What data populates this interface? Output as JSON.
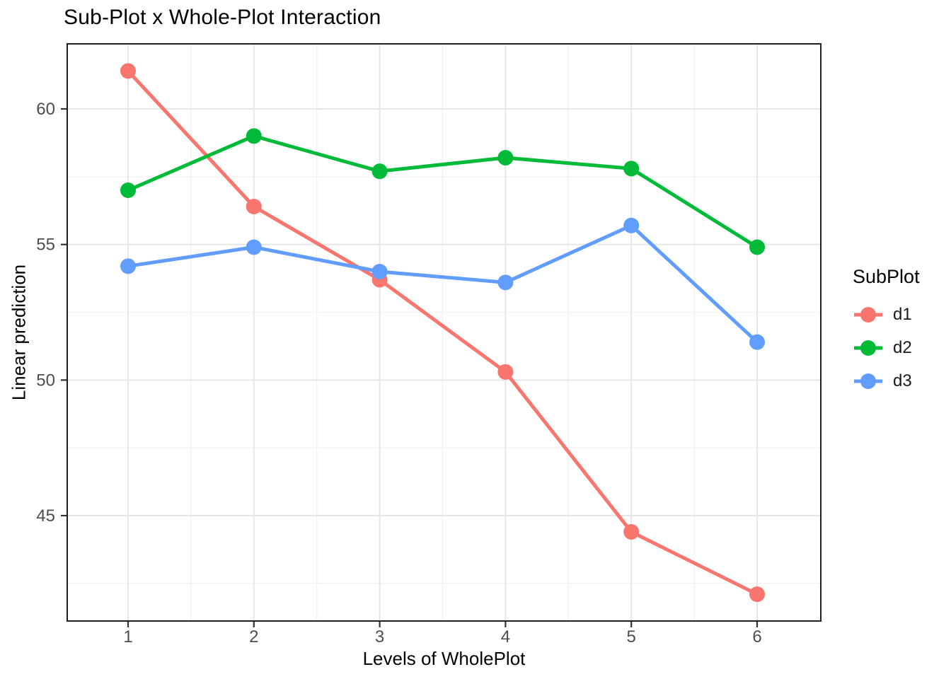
{
  "chart_data": {
    "type": "line",
    "title": "Sub-Plot x Whole-Plot Interaction",
    "xlabel": "Levels of WholePlot",
    "ylabel": "Linear prediction",
    "x": [
      1,
      2,
      3,
      4,
      5,
      6
    ],
    "series": [
      {
        "name": "d1",
        "color": "#F8766D",
        "values": [
          61.4,
          56.4,
          53.7,
          50.3,
          44.4,
          42.1
        ]
      },
      {
        "name": "d2",
        "color": "#00BA38",
        "values": [
          57.0,
          59.0,
          57.7,
          58.2,
          57.8,
          54.9
        ]
      },
      {
        "name": "d3",
        "color": "#619CFF",
        "values": [
          54.2,
          54.9,
          54.0,
          53.6,
          55.7,
          51.4
        ]
      }
    ],
    "x_ticks": [
      1,
      2,
      3,
      4,
      5,
      6
    ],
    "y_ticks": [
      45,
      50,
      55,
      60
    ],
    "x_minor_gridlines": [
      1.5,
      2.5,
      3.5,
      4.5,
      5.5
    ],
    "y_minor_gridlines": [
      42.5,
      47.5,
      52.5,
      57.5
    ],
    "xlim": [
      0.52,
      6.51
    ],
    "ylim": [
      41.1,
      62.4
    ],
    "grid": true,
    "legend": {
      "title": "SubPlot",
      "position": "right"
    },
    "colors": {
      "major_grid": "#e6e6e6",
      "minor_grid": "#f2f2f2",
      "panel_border": "#1f1f1f",
      "tick_mark": "#333333",
      "tick_label": "#4d4d4d"
    }
  }
}
